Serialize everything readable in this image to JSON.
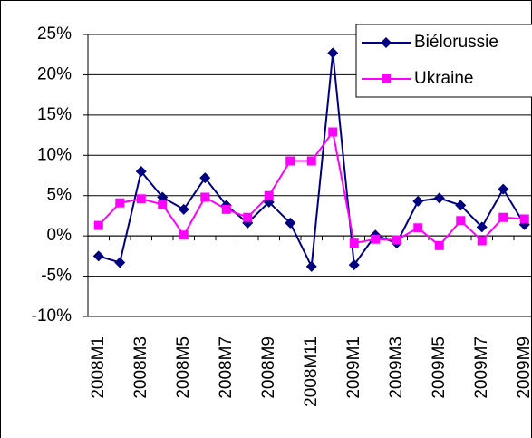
{
  "chart_data": {
    "type": "line",
    "categories": [
      "2008M1",
      null,
      "2008M3",
      null,
      "2008M5",
      null,
      "2008M7",
      null,
      "2008M9",
      null,
      "2008M11",
      null,
      "2009M1",
      null,
      "2009M3",
      null,
      "2009M5",
      null,
      "2009M7",
      null,
      "2009M9"
    ],
    "series": [
      {
        "name": "Biélorussie",
        "color": "#000080",
        "marker": "diamond",
        "values": [
          -2.5,
          -3.3,
          8.0,
          4.8,
          3.3,
          7.2,
          3.8,
          1.6,
          4.2,
          1.6,
          -3.8,
          22.7,
          -3.6,
          0.1,
          -0.9,
          4.3,
          4.7,
          3.8,
          1.1,
          5.8,
          1.4
        ]
      },
      {
        "name": "Ukraine",
        "color": "#ff00ff",
        "marker": "square",
        "values": [
          1.3,
          4.1,
          4.6,
          3.9,
          0.1,
          4.8,
          3.3,
          2.3,
          5.0,
          9.3,
          9.3,
          12.9,
          -0.9,
          -0.4,
          -0.5,
          1.0,
          -1.2,
          1.9,
          -0.6,
          2.3,
          2.1
        ]
      }
    ],
    "ylim": [
      -10,
      25
    ],
    "yticks": [
      {
        "value": -10,
        "label": "-10%"
      },
      {
        "value": -5,
        "label": "-5%"
      },
      {
        "value": 0,
        "label": "0%"
      },
      {
        "value": 5,
        "label": "5%"
      },
      {
        "value": 10,
        "label": "10%"
      },
      {
        "value": 15,
        "label": "15%"
      },
      {
        "value": 20,
        "label": "20%"
      },
      {
        "value": 25,
        "label": "25%"
      }
    ],
    "grid": true,
    "legend": "top-right"
  }
}
